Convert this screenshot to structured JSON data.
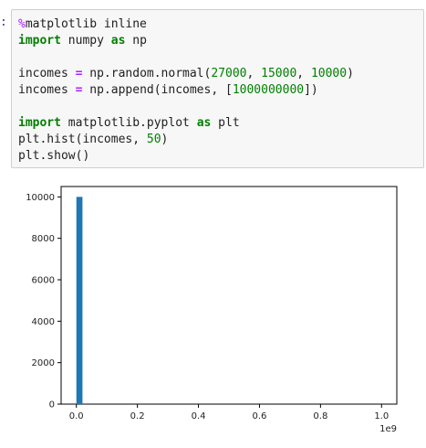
{
  "cell": {
    "prompt": ":",
    "code_lines": [
      [
        {
          "t": "%",
          "c": "mg"
        },
        {
          "t": "matplotlib inline",
          "c": ""
        }
      ],
      [
        {
          "t": "import",
          "c": "kw"
        },
        {
          "t": " numpy ",
          "c": ""
        },
        {
          "t": "as",
          "c": "kw"
        },
        {
          "t": " np",
          "c": ""
        }
      ],
      [],
      [
        {
          "t": "incomes ",
          "c": ""
        },
        {
          "t": "=",
          "c": "op"
        },
        {
          "t": " np.random.normal(",
          "c": ""
        },
        {
          "t": "27000",
          "c": "num"
        },
        {
          "t": ", ",
          "c": ""
        },
        {
          "t": "15000",
          "c": "num"
        },
        {
          "t": ", ",
          "c": ""
        },
        {
          "t": "10000",
          "c": "num"
        },
        {
          "t": ")",
          "c": ""
        }
      ],
      [
        {
          "t": "incomes ",
          "c": ""
        },
        {
          "t": "=",
          "c": "op"
        },
        {
          "t": " np.append(incomes, [",
          "c": ""
        },
        {
          "t": "1000000000",
          "c": "num"
        },
        {
          "t": "])",
          "c": ""
        }
      ],
      [],
      [
        {
          "t": "import",
          "c": "kw"
        },
        {
          "t": " matplotlib.pyplot ",
          "c": ""
        },
        {
          "t": "as",
          "c": "kw"
        },
        {
          "t": " plt",
          "c": ""
        }
      ],
      [
        {
          "t": "plt.hist(incomes, ",
          "c": ""
        },
        {
          "t": "50",
          "c": "num"
        },
        {
          "t": ")",
          "c": ""
        }
      ],
      [
        {
          "t": "plt.show()",
          "c": ""
        }
      ]
    ]
  },
  "chart_data": {
    "type": "bar",
    "title": "",
    "xlabel": "",
    "ylabel": "",
    "x_offset_label": "1e9",
    "xlim": [
      -0.05,
      1.05
    ],
    "ylim": [
      0,
      10500
    ],
    "xticks": [
      0.0,
      0.2,
      0.4,
      0.6,
      0.8,
      1.0
    ],
    "xtick_labels": [
      "0.0",
      "0.2",
      "0.4",
      "0.6",
      "0.8",
      "1.0"
    ],
    "yticks": [
      0,
      2000,
      4000,
      6000,
      8000,
      10000
    ],
    "ytick_labels": [
      "0",
      "2000",
      "4000",
      "6000",
      "8000",
      "10000"
    ],
    "bin_width": 0.02,
    "bins": [
      {
        "x": 0.0,
        "value": 10000
      },
      {
        "x": 0.98,
        "value": 1
      }
    ],
    "bar_color": "#1f77b4",
    "grid": false,
    "legend": "none"
  }
}
